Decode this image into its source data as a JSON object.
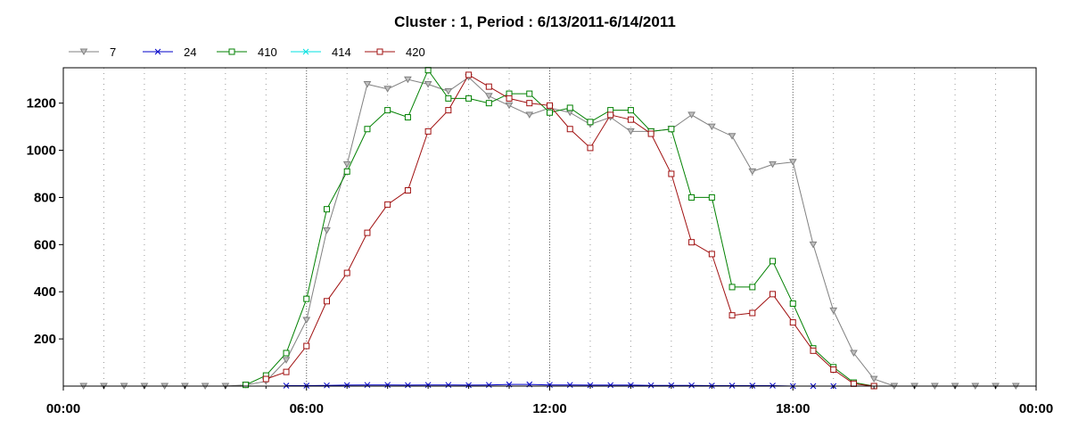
{
  "chart_data": {
    "type": "line",
    "title": "Cluster : 1, Period : 6/13/2011-6/14/2011",
    "xlabel": "",
    "ylabel": "",
    "xlim": [
      0,
      24
    ],
    "ylim": [
      0,
      1350
    ],
    "x_ticks": [
      0,
      6,
      12,
      18,
      24
    ],
    "x_tick_labels": [
      "00:00",
      "06:00",
      "12:00",
      "18:00",
      "00:00"
    ],
    "y_ticks": [
      200,
      400,
      600,
      800,
      1000,
      1200
    ],
    "y_tick_labels": [
      "200",
      "400",
      "600",
      "800",
      "1000",
      "1200"
    ],
    "grid": true,
    "legend_position": "top-left",
    "series": [
      {
        "name": "7",
        "color": "#808080",
        "marker": "triangle-down",
        "x": [
          0.5,
          1,
          1.5,
          2,
          2.5,
          3,
          3.5,
          4,
          4.5,
          5,
          5.5,
          6,
          6.5,
          7,
          7.5,
          8,
          8.5,
          9,
          9.5,
          10,
          10.5,
          11,
          11.5,
          12,
          12.5,
          13,
          13.5,
          14,
          14.5,
          15,
          15.5,
          16,
          16.5,
          17,
          17.5,
          18,
          18.5,
          19,
          19.5,
          20,
          20.5,
          21,
          21.5,
          22,
          22.5,
          23,
          23.5
        ],
        "y": [
          0,
          0,
          0,
          0,
          0,
          0,
          0,
          0,
          5,
          20,
          110,
          280,
          660,
          940,
          1280,
          1260,
          1300,
          1280,
          1250,
          1310,
          1230,
          1190,
          1150,
          1180,
          1160,
          1110,
          1140,
          1080,
          1080,
          1090,
          1150,
          1100,
          1060,
          910,
          940,
          950,
          600,
          320,
          140,
          30,
          0,
          0,
          0,
          0,
          0,
          0,
          0
        ]
      },
      {
        "name": "24",
        "color": "#0000c8",
        "marker": "x",
        "x": [
          5.5,
          6,
          6.5,
          7,
          7.5,
          8,
          8.5,
          9,
          9.5,
          10,
          10.5,
          11,
          11.5,
          12,
          12.5,
          13,
          13.5,
          14,
          14.5,
          15,
          15.5,
          16,
          16.5,
          17,
          17.5,
          18,
          18.5,
          19
        ],
        "y": [
          2,
          2,
          3,
          4,
          5,
          5,
          4,
          5,
          5,
          4,
          5,
          7,
          7,
          5,
          5,
          4,
          4,
          4,
          3,
          3,
          3,
          2,
          2,
          2,
          2,
          0,
          0,
          0
        ]
      },
      {
        "name": "410",
        "color": "#008000",
        "marker": "square",
        "x": [
          4.5,
          5,
          5.5,
          6,
          6.5,
          7,
          7.5,
          8,
          8.5,
          9,
          9.5,
          10,
          10.5,
          11,
          11.5,
          12,
          12.5,
          13,
          13.5,
          14,
          14.5,
          15,
          15.5,
          16,
          16.5,
          17,
          17.5,
          18,
          18.5,
          19,
          19.5,
          20
        ],
        "y": [
          5,
          45,
          140,
          370,
          750,
          910,
          1090,
          1170,
          1140,
          1340,
          1220,
          1220,
          1200,
          1240,
          1240,
          1160,
          1180,
          1120,
          1170,
          1170,
          1080,
          1090,
          800,
          800,
          420,
          420,
          530,
          350,
          160,
          80,
          15,
          0
        ]
      },
      {
        "name": "414",
        "color": "#00e0e0",
        "marker": "x",
        "x": [],
        "y": []
      },
      {
        "name": "420",
        "color": "#a01010",
        "marker": "square",
        "x": [
          5,
          5.5,
          6,
          6.5,
          7,
          7.5,
          8,
          8.5,
          9,
          9.5,
          10,
          10.5,
          11,
          11.5,
          12,
          12.5,
          13,
          13.5,
          14,
          14.5,
          15,
          15.5,
          16,
          16.5,
          17,
          17.5,
          18,
          18.5,
          19,
          19.5,
          20
        ],
        "y": [
          30,
          60,
          170,
          360,
          480,
          650,
          770,
          830,
          1080,
          1170,
          1320,
          1270,
          1220,
          1200,
          1190,
          1090,
          1010,
          1150,
          1130,
          1070,
          900,
          610,
          560,
          300,
          310,
          390,
          270,
          150,
          70,
          10,
          0
        ]
      }
    ]
  }
}
